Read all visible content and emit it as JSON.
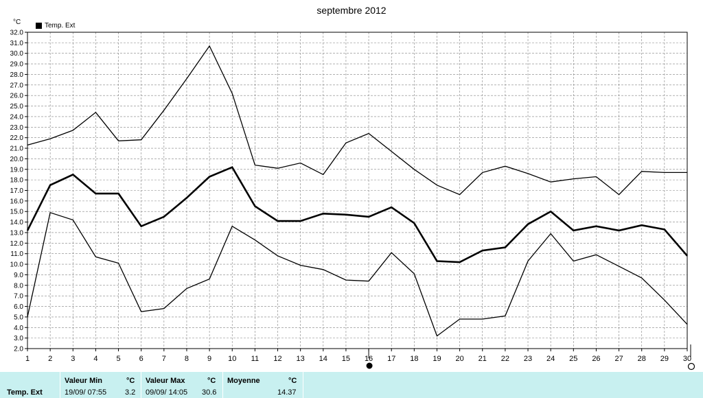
{
  "title": "septembre 2012",
  "unit_label": "°C",
  "legend": {
    "label": "Temp. Ext"
  },
  "colors": {
    "line": "#000000",
    "grid": "#808080",
    "stats_bg": "#c8f0f0"
  },
  "markers": {
    "cursor_day": 16,
    "end_day": 30
  },
  "chart_data": {
    "type": "line",
    "title": "septembre 2012",
    "ylabel": "°C",
    "x": [
      1,
      2,
      3,
      4,
      5,
      6,
      7,
      8,
      9,
      10,
      11,
      12,
      13,
      14,
      15,
      16,
      17,
      18,
      19,
      20,
      21,
      22,
      23,
      24,
      25,
      26,
      27,
      28,
      29,
      30
    ],
    "ylim": [
      2.0,
      32.0
    ],
    "yticks": [
      "2.0",
      "3.0",
      "4.0",
      "5.0",
      "6.0",
      "7.0",
      "8.0",
      "9.0",
      "10.0",
      "11.0",
      "12.0",
      "13.0",
      "14.0",
      "15.0",
      "16.0",
      "17.0",
      "18.0",
      "19.0",
      "20.0",
      "21.0",
      "22.0",
      "23.0",
      "24.0",
      "25.0",
      "26.0",
      "27.0",
      "28.0",
      "29.0",
      "30.0",
      "31.0",
      "32.0"
    ],
    "grid": true,
    "legend_position": "top-left",
    "series": [
      {
        "role": "max",
        "width": 1.3,
        "values": [
          21.3,
          21.9,
          22.7,
          24.4,
          21.7,
          21.8,
          24.6,
          27.6,
          30.7,
          26.2,
          19.4,
          19.1,
          19.6,
          18.5,
          21.5,
          22.4,
          20.7,
          19.0,
          17.5,
          16.6,
          18.7,
          19.3,
          18.6,
          17.8,
          18.1,
          18.3,
          16.6,
          18.8,
          18.7,
          18.7
        ]
      },
      {
        "role": "avg",
        "width": 2.6,
        "values": [
          13.2,
          17.5,
          18.5,
          16.7,
          16.7,
          13.6,
          14.5,
          16.3,
          18.3,
          19.2,
          15.5,
          14.1,
          14.1,
          14.8,
          14.7,
          14.5,
          15.4,
          13.9,
          10.3,
          10.2,
          11.3,
          11.6,
          13.8,
          15.0,
          13.2,
          13.6,
          13.2,
          13.7,
          13.3,
          10.8
        ]
      },
      {
        "role": "min",
        "width": 1.3,
        "values": [
          5.0,
          14.9,
          14.2,
          10.7,
          10.1,
          5.5,
          5.8,
          7.7,
          8.6,
          13.6,
          12.3,
          10.8,
          9.9,
          9.5,
          8.5,
          8.4,
          11.1,
          9.1,
          3.2,
          4.8,
          4.8,
          5.1,
          10.3,
          12.9,
          10.3,
          10.9,
          9.8,
          8.7,
          6.6,
          4.3
        ]
      }
    ]
  },
  "stats": {
    "row_label": "Temp. Ext",
    "min": {
      "header": "Valeur Min",
      "unit": "°C",
      "datetime": "19/09/  07:55",
      "value": "3.2"
    },
    "max": {
      "header": "Valeur Max",
      "unit": "°C",
      "datetime": "09/09/  14:05",
      "value": "30.6"
    },
    "avg": {
      "header": "Moyenne",
      "unit": "°C",
      "value": "14.37"
    }
  }
}
